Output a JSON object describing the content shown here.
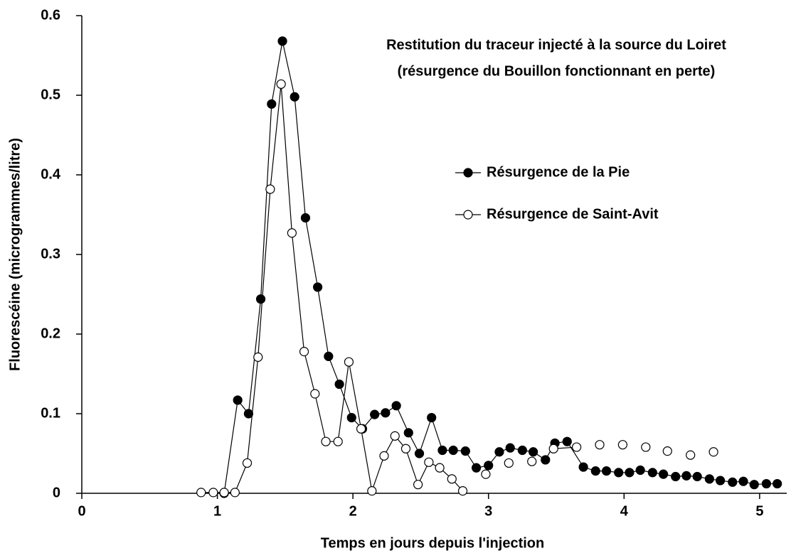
{
  "chart_data": {
    "type": "line",
    "title": [
      "Restitution du traceur injecté à la source du Loiret",
      "(résurgence du Bouillon fonctionnant en perte)"
    ],
    "x_label": "Temps en jours depuis l'injection",
    "y_label": "Fluorescéine  (microgrammes/litre)",
    "xlim": [
      0,
      5.2
    ],
    "ylim": [
      0,
      0.6
    ],
    "xticks": [
      0,
      1,
      2,
      3,
      4,
      5
    ],
    "yticks": [
      0,
      0.1,
      0.2,
      0.3,
      0.4,
      0.5,
      0.6
    ],
    "series": [
      {
        "name": "Résurgence de la Pie",
        "color": "#000000",
        "marker_fill": "#000000",
        "x": [
          1.05,
          1.15,
          1.23,
          1.32,
          1.4,
          1.48,
          1.57,
          1.65,
          1.74,
          1.82,
          1.9,
          1.99,
          2.07,
          2.16,
          2.24,
          2.32,
          2.41,
          2.49,
          2.58,
          2.66,
          2.74,
          2.83,
          2.91,
          3.0,
          3.08,
          3.16,
          3.25,
          3.33,
          3.42,
          3.49,
          3.58,
          3.7,
          3.79,
          3.87,
          3.96,
          4.04,
          4.12,
          4.21,
          4.29,
          4.38,
          4.46,
          4.54,
          4.63,
          4.71,
          4.8,
          4.88,
          4.96,
          5.05,
          5.13
        ],
        "values": [
          0,
          0.117,
          0.1,
          0.244,
          0.489,
          0.568,
          0.498,
          0.346,
          0.259,
          0.172,
          0.137,
          0.095,
          0.081,
          0.099,
          0.101,
          0.11,
          0.076,
          0.05,
          0.095,
          0.054,
          0.054,
          0.053,
          0.032,
          0.035,
          0.052,
          0.057,
          0.054,
          0.052,
          0.042,
          0.063,
          0.065,
          0.033,
          0.028,
          0.028,
          0.026,
          0.026,
          0.029,
          0.026,
          0.024,
          0.021,
          0.022,
          0.021,
          0.018,
          0.016,
          0.014,
          0.015,
          0.011,
          0.012,
          0.012
        ]
      },
      {
        "name": "Résurgence de Saint-Avit",
        "color": "#000000",
        "marker_fill": "#ffffff",
        "x": [
          0.88,
          0.97,
          1.05,
          1.13,
          1.22,
          1.3,
          1.39,
          1.47,
          1.55,
          1.64,
          1.72,
          1.8,
          1.89,
          1.97,
          2.06,
          2.14,
          2.23,
          2.31,
          2.39,
          2.48,
          2.56,
          2.64,
          2.73,
          2.81,
          null,
          2.98,
          null,
          3.15,
          null,
          3.32,
          null,
          3.48,
          3.65,
          null,
          3.82,
          null,
          3.99,
          null,
          4.16,
          null,
          4.32,
          null,
          4.49,
          null,
          4.66
        ],
        "values": [
          0.001,
          0.001,
          0.001,
          0.001,
          0.038,
          0.171,
          0.382,
          0.514,
          0.327,
          0.178,
          0.125,
          0.065,
          0.065,
          0.165,
          0.081,
          0.003,
          0.047,
          0.072,
          0.056,
          0.011,
          0.039,
          0.032,
          0.018,
          0.003,
          null,
          0.024,
          null,
          0.038,
          null,
          0.04,
          null,
          0.056,
          0.058,
          null,
          0.061,
          null,
          0.061,
          null,
          0.058,
          null,
          0.053,
          null,
          0.048,
          null,
          0.052
        ]
      }
    ],
    "legend": "upper right"
  }
}
